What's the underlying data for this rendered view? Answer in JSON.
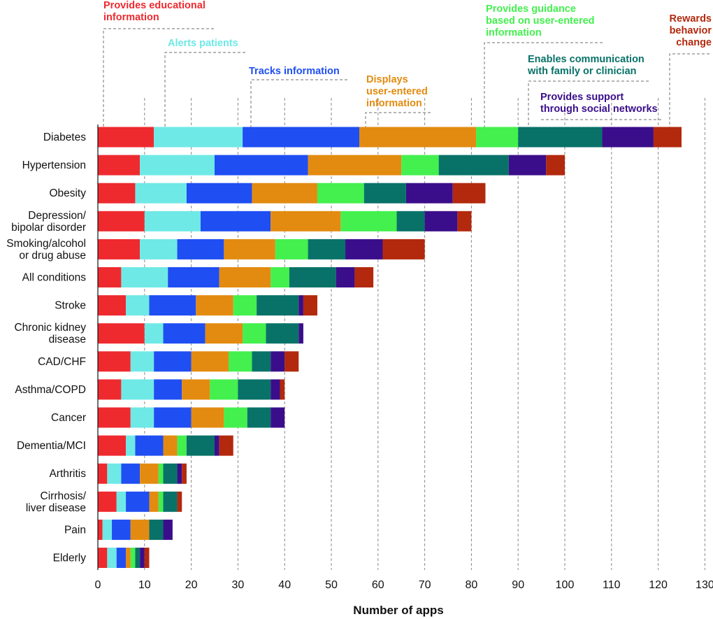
{
  "chart_data": {
    "type": "bar",
    "orientation": "horizontal",
    "stacked": true,
    "xlabel": "Number of apps",
    "xlim": [
      0,
      130
    ],
    "xticks": [
      0,
      10,
      20,
      30,
      40,
      50,
      60,
      70,
      80,
      90,
      100,
      110,
      120,
      130
    ],
    "grid": true,
    "categories": [
      [
        "Diabetes"
      ],
      [
        "Hypertension"
      ],
      [
        "Obesity"
      ],
      [
        "Depression/",
        "bipolar disorder"
      ],
      [
        "Smoking/alcohol",
        "or drug abuse"
      ],
      [
        "All conditions"
      ],
      [
        "Stroke"
      ],
      [
        "Chronic kidney",
        "disease"
      ],
      [
        "CAD/CHF"
      ],
      [
        "Asthma/COPD"
      ],
      [
        "Cancer"
      ],
      [
        "Dementia/MCI"
      ],
      [
        "Arthritis"
      ],
      [
        "Cirrhosis/",
        "liver disease"
      ],
      [
        "Pain"
      ],
      [
        "Elderly"
      ]
    ],
    "series": [
      {
        "name": [
          "Provides educational",
          "information"
        ],
        "color": "#ee2a2f",
        "values": [
          12,
          9,
          8,
          10,
          9,
          5,
          6,
          10,
          7,
          5,
          7,
          6,
          2,
          4,
          1,
          2
        ]
      },
      {
        "name": [
          "Alerts patients"
        ],
        "color": "#6ee9e6",
        "values": [
          19,
          16,
          11,
          12,
          8,
          10,
          5,
          4,
          5,
          7,
          5,
          2,
          3,
          2,
          2,
          2
        ]
      },
      {
        "name": [
          "Tracks information"
        ],
        "color": "#1f4ef2",
        "values": [
          25,
          20,
          14,
          15,
          10,
          11,
          10,
          9,
          8,
          6,
          8,
          6,
          4,
          5,
          4,
          2
        ]
      },
      {
        "name": [
          "Displays",
          "user-entered",
          "information"
        ],
        "color": "#e38b10",
        "values": [
          25,
          20,
          14,
          15,
          11,
          11,
          8,
          8,
          8,
          6,
          7,
          3,
          4,
          2,
          4,
          1
        ]
      },
      {
        "name": [
          "Provides guidance",
          "based on user-entered",
          "information"
        ],
        "color": "#43f04e",
        "values": [
          9,
          8,
          10,
          12,
          7,
          4,
          5,
          5,
          5,
          6,
          5,
          2,
          1,
          1,
          0,
          1
        ]
      },
      {
        "name": [
          "Enables communication",
          "with family or clinician"
        ],
        "color": "#087268",
        "values": [
          18,
          15,
          9,
          6,
          8,
          10,
          9,
          7,
          4,
          7,
          5,
          6,
          3,
          3,
          3,
          1
        ]
      },
      {
        "name": [
          "Provides support",
          "through social networks"
        ],
        "color": "#3a0e8a",
        "values": [
          11,
          8,
          10,
          7,
          8,
          4,
          1,
          1,
          3,
          2,
          3,
          1,
          1,
          0,
          2,
          1
        ]
      },
      {
        "name": [
          "Rewards",
          "behavior",
          "change"
        ],
        "color": "#b3290d",
        "values": [
          6,
          4,
          7,
          3,
          9,
          4,
          3,
          0,
          3,
          1,
          0,
          3,
          1,
          1,
          0,
          1
        ]
      }
    ]
  }
}
